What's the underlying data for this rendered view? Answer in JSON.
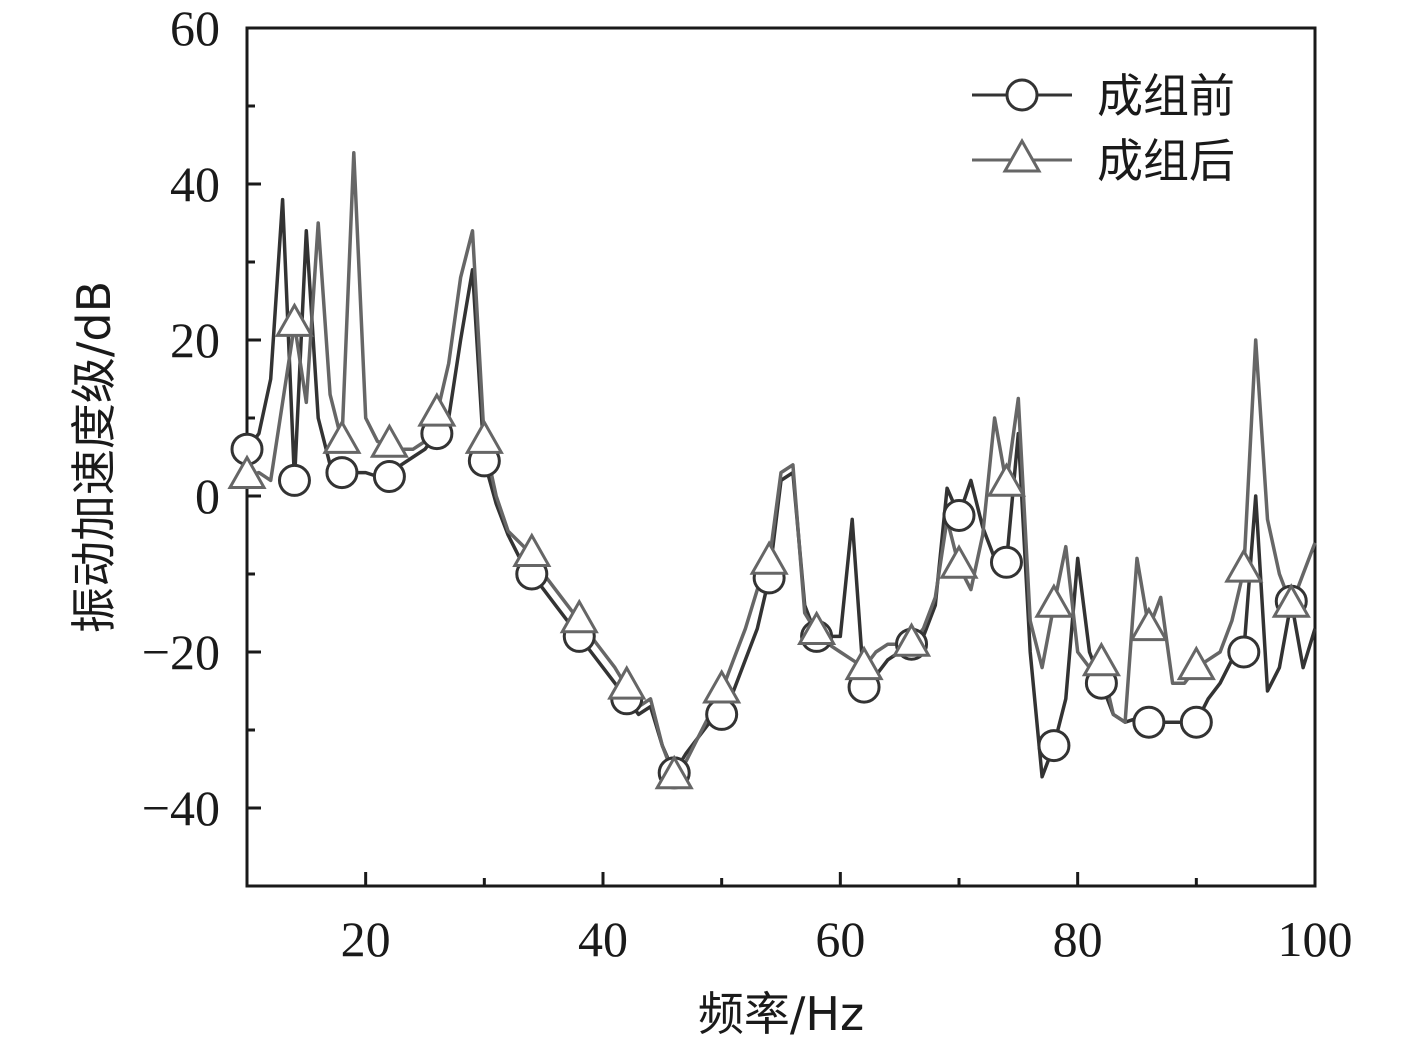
{
  "chart_data": {
    "type": "line",
    "title": "",
    "xlabel": "频率/Hz",
    "ylabel": "振动加速度级/dB",
    "xlim": [
      10,
      100
    ],
    "ylim": [
      -50,
      60
    ],
    "x_ticks": [
      20,
      40,
      60,
      80,
      100
    ],
    "y_ticks": [
      -40,
      -20,
      0,
      20,
      40,
      60
    ],
    "x_tick_labels": [
      "20",
      "40",
      "60",
      "80",
      "100"
    ],
    "y_tick_labels": [
      "−40",
      "−20",
      "0",
      "20",
      "40",
      "60"
    ],
    "grid": false,
    "legend_position": "top-right",
    "series": [
      {
        "name": "成组前",
        "color": "#333333",
        "marker": "circle",
        "x": [
          10,
          11,
          12,
          13,
          14,
          15,
          16,
          17,
          18,
          19,
          20,
          21,
          22,
          23,
          24,
          25,
          26,
          27,
          28,
          29,
          30,
          31,
          32,
          33,
          34,
          35,
          36,
          37,
          38,
          39,
          40,
          41,
          42,
          43,
          44,
          45,
          46,
          47,
          48,
          49,
          50,
          51,
          52,
          53,
          54,
          55,
          56,
          57,
          58,
          59,
          60,
          61,
          62,
          63,
          64,
          65,
          66,
          67,
          68,
          69,
          70,
          71,
          72,
          73,
          74,
          75,
          76,
          77,
          78,
          79,
          80,
          81,
          82,
          83,
          84,
          85,
          86,
          87,
          88,
          89,
          90,
          91,
          92,
          93,
          94,
          95,
          96,
          97,
          98,
          99,
          100
        ],
        "y": [
          6,
          8,
          15,
          38,
          2,
          34,
          10,
          4,
          3,
          3,
          3,
          2.5,
          2.5,
          4,
          5,
          6,
          8,
          10,
          20,
          29,
          4.5,
          -1,
          -5,
          -8,
          -10,
          -12,
          -14,
          -16,
          -18,
          -20,
          -22,
          -24,
          -26,
          -28,
          -27,
          -32,
          -35.5,
          -33,
          -31,
          -29,
          -28,
          -25,
          -21,
          -17,
          -10.5,
          2,
          3,
          -14,
          -18,
          -18,
          -18,
          -3,
          -24.5,
          -23,
          -21,
          -20,
          -19,
          -18,
          -14,
          1,
          -2.5,
          2,
          -4,
          -8,
          -8.5,
          8,
          -20,
          -36,
          -32,
          -26,
          -8,
          -20,
          -24,
          -28,
          -29,
          -28.5,
          -29,
          -29,
          -29,
          -29,
          -29,
          -26,
          -24,
          -21,
          -20,
          0,
          -25,
          -22,
          -13.5,
          -22,
          -17
        ]
      },
      {
        "name": "成组后",
        "color": "#666666",
        "marker": "triangle",
        "x": [
          10,
          11,
          12,
          13,
          14,
          15,
          16,
          17,
          18,
          19,
          20,
          21,
          22,
          23,
          24,
          25,
          26,
          27,
          28,
          29,
          30,
          31,
          32,
          33,
          34,
          35,
          36,
          37,
          38,
          39,
          40,
          41,
          42,
          43,
          44,
          45,
          46,
          47,
          48,
          49,
          50,
          51,
          52,
          53,
          54,
          55,
          56,
          57,
          58,
          59,
          60,
          61,
          62,
          63,
          64,
          65,
          66,
          67,
          68,
          69,
          70,
          71,
          72,
          73,
          74,
          75,
          76,
          77,
          78,
          79,
          80,
          81,
          82,
          83,
          84,
          85,
          86,
          87,
          88,
          89,
          90,
          91,
          92,
          93,
          94,
          95,
          96,
          97,
          98,
          99,
          100
        ],
        "y": [
          2.5,
          3,
          2,
          12,
          22,
          12,
          35,
          13,
          7,
          44,
          10,
          7,
          6.5,
          6,
          6,
          7,
          10.5,
          17,
          28,
          34,
          7,
          0,
          -4.5,
          -6,
          -7.5,
          -10,
          -12,
          -14,
          -16,
          -18,
          -20,
          -22,
          -24.5,
          -27,
          -26,
          -32,
          -36,
          -34,
          -31,
          -28,
          -25,
          -21,
          -17,
          -12,
          -8.5,
          3,
          4,
          -15,
          -17.5,
          -19,
          -20,
          -21,
          -22,
          -20,
          -19,
          -19,
          -19,
          -17,
          -13,
          -3,
          -9,
          -12,
          -5,
          10,
          1.5,
          12.5,
          -16,
          -22,
          -14,
          -6.5,
          -20,
          -22,
          -21.5,
          -28,
          -29,
          -8,
          -17,
          -13,
          -24,
          -24,
          -22,
          -21,
          -20,
          -16,
          -9.5,
          20,
          -3,
          -10,
          -14,
          -10,
          -6
        ]
      }
    ]
  }
}
